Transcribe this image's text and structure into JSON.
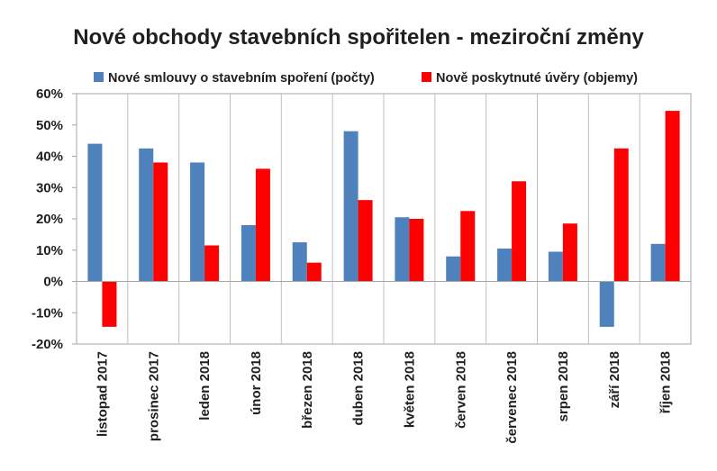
{
  "chart_data": {
    "type": "bar",
    "title": "Nové obchody stavebních spořitelen - meziroční změny",
    "categories": [
      "listopad 2017",
      "prosinec 2017",
      "leden 2018",
      "únor 2018",
      "březen 2018",
      "duben 2018",
      "květen 2018",
      "červen 2018",
      "červenec 2018",
      "srpen 2018",
      "září 2018",
      "říjen 2018"
    ],
    "series": [
      {
        "name": "Nové smlouvy o stavebním spoření (počty)",
        "color": "#4f81bd",
        "values": [
          44,
          42.5,
          38,
          18,
          12.5,
          48,
          20.5,
          8,
          10.5,
          9.5,
          -14.5,
          12
        ]
      },
      {
        "name": "Nově poskytnuté úvěry (objemy)",
        "color": "#ff0000",
        "values": [
          -14.5,
          38,
          11.5,
          36,
          6,
          26,
          20,
          22.5,
          32,
          18.5,
          42.5,
          54.5
        ]
      }
    ],
    "ylim": [
      -20,
      60
    ],
    "yticks": [
      -20,
      -10,
      0,
      10,
      20,
      30,
      40,
      50,
      60
    ],
    "ytick_labels": [
      "-20%",
      "-10%",
      "0%",
      "10%",
      "20%",
      "30%",
      "40%",
      "50%",
      "60%"
    ],
    "legend_position": "top",
    "grid": "vertical category separators"
  }
}
